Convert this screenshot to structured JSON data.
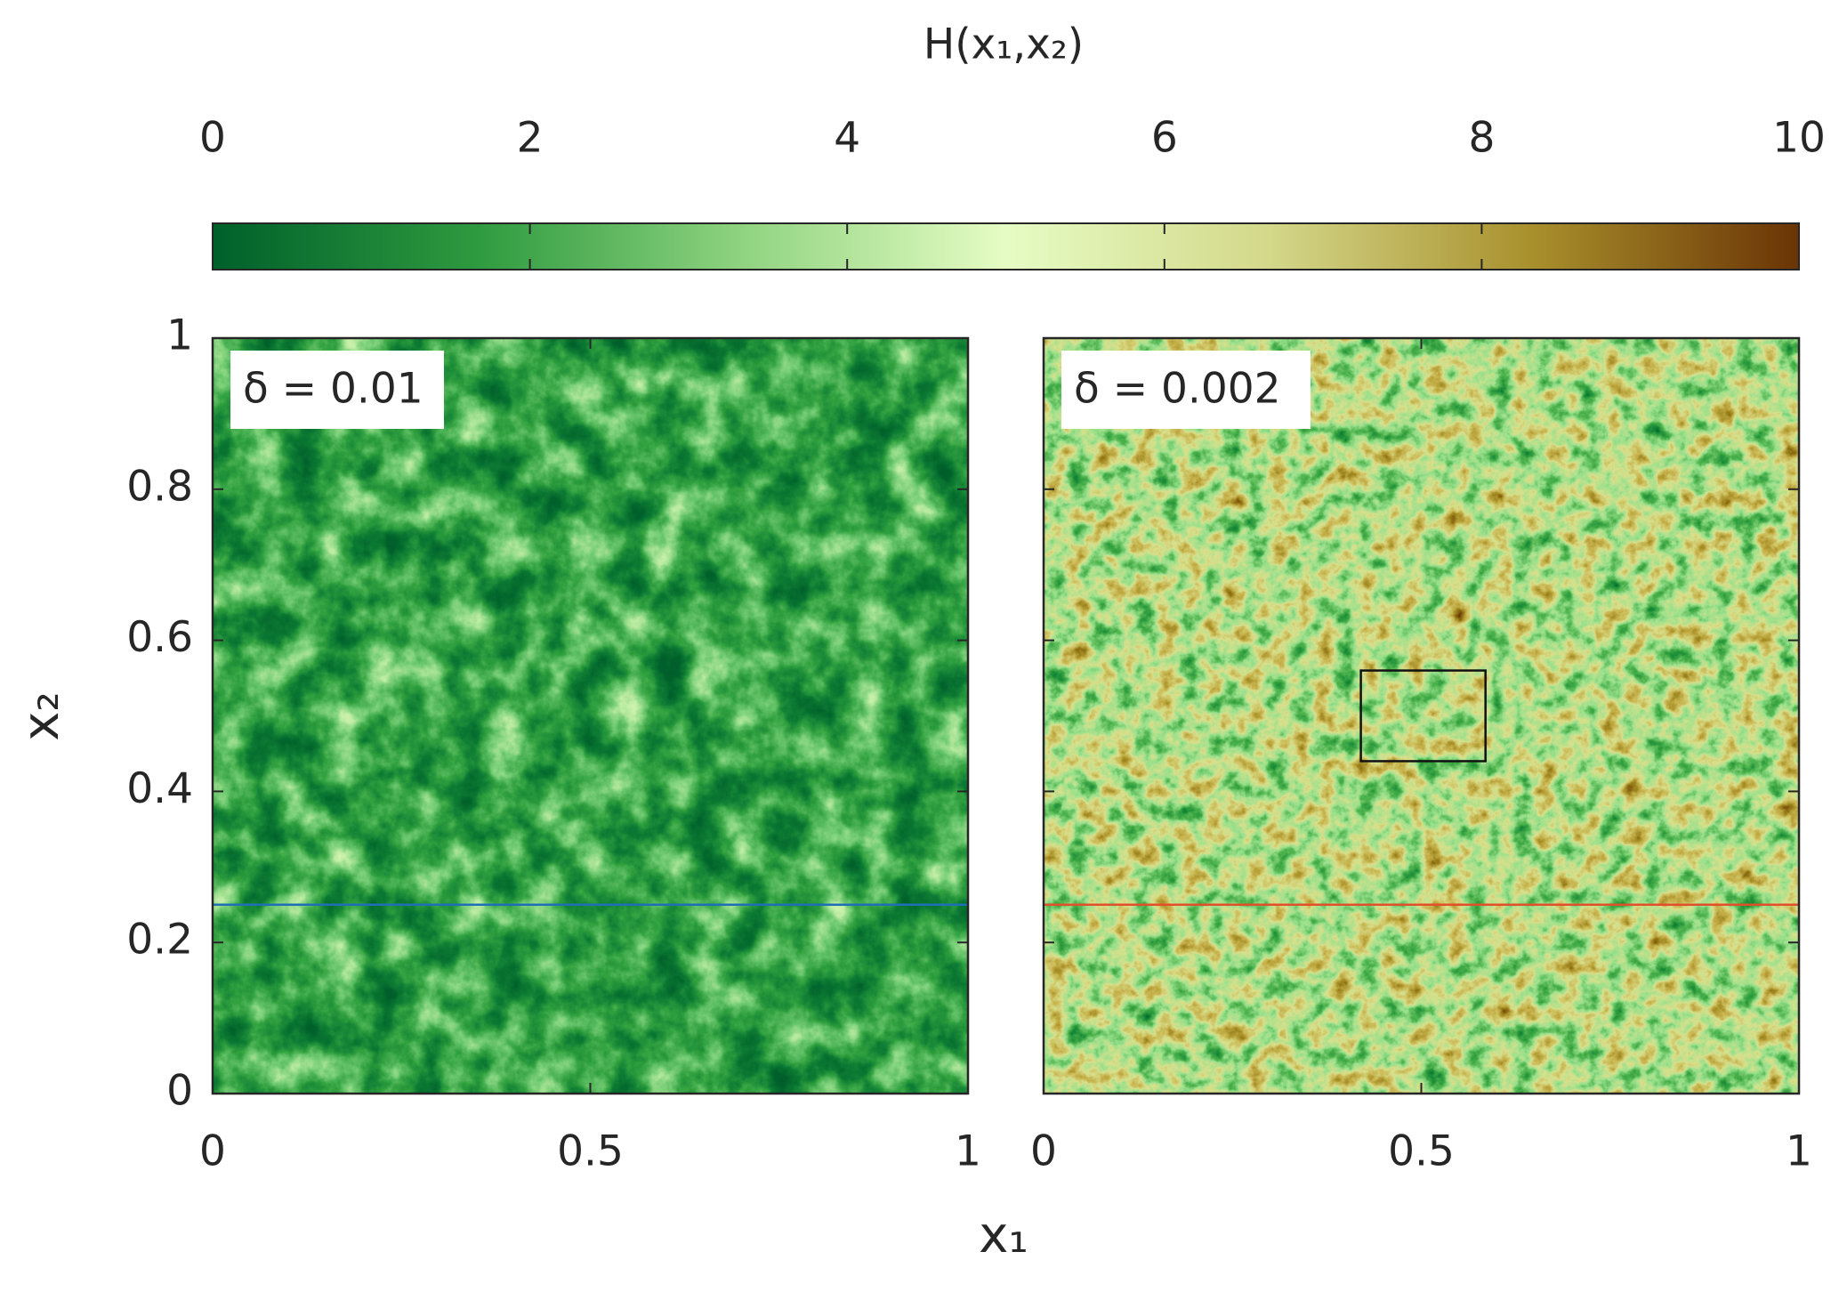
{
  "chart_data": {
    "type": "heatmap",
    "xlabel": "x₁",
    "ylabel": "x₂",
    "colorbar": {
      "label": "H(x₁,x₂)",
      "lim": [
        0,
        10
      ],
      "ticks": [
        0,
        2,
        4,
        6,
        8,
        10
      ],
      "colormap": [
        "#00602b",
        "#2e9a3f",
        "#8fd380",
        "#e6fcc4",
        "#d3d88a",
        "#a88f2c",
        "#6a3406"
      ]
    },
    "panels": [
      {
        "annotation": "δ = 0.01",
        "xlim": [
          0,
          1
        ],
        "ylim": [
          0,
          1
        ],
        "xticks": [
          0,
          0.5,
          1
        ],
        "yticks": [
          0,
          0.2,
          0.4,
          0.6,
          0.8,
          1
        ],
        "hline": {
          "y": 0.25,
          "color": "#1f6fb4"
        }
      },
      {
        "annotation": "δ = 0.002",
        "xlim": [
          0,
          1
        ],
        "ylim": [
          0,
          1
        ],
        "xticks": [
          0,
          0.5,
          1
        ],
        "yticks": [
          0,
          0.2,
          0.4,
          0.6,
          0.8,
          1
        ],
        "hline": {
          "y": 0.25,
          "color": "#e0502a"
        },
        "box": {
          "x": [
            0.42,
            0.585
          ],
          "y": [
            0.44,
            0.56
          ]
        }
      }
    ]
  }
}
